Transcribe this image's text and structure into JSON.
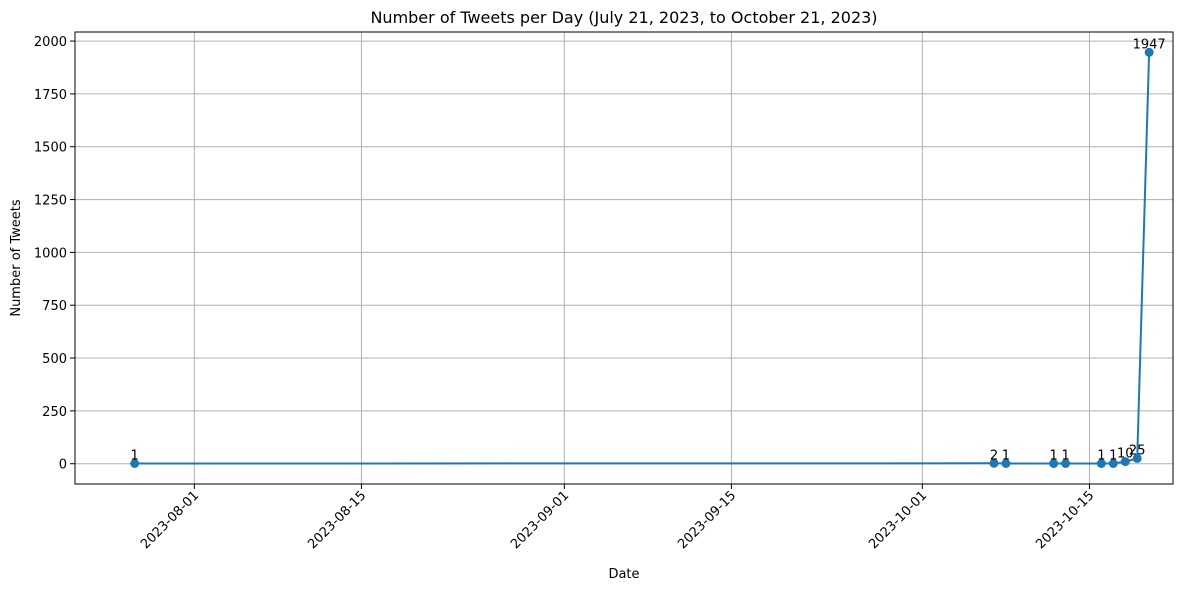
{
  "chart_data": {
    "type": "line",
    "title": "Number of Tweets per Day (July 21, 2023, to October 21, 2023)",
    "xlabel": "Date",
    "ylabel": "Number of Tweets",
    "x_ticks": [
      "2023-08-01",
      "2023-08-15",
      "2023-09-01",
      "2023-09-15",
      "2023-10-01",
      "2023-10-15"
    ],
    "y_ticks": [
      0,
      250,
      500,
      750,
      1000,
      1250,
      1500,
      1750,
      2000
    ],
    "xlim": [
      "2023-07-22",
      "2023-10-22"
    ],
    "ylim": [
      -96,
      2043
    ],
    "grid": true,
    "marker": "circle",
    "color": "#1f77b4",
    "series": [
      {
        "points": [
          {
            "x": "2023-07-27",
            "y": 1,
            "label": "1"
          },
          {
            "x": "2023-10-07",
            "y": 2,
            "label": "2"
          },
          {
            "x": "2023-10-08",
            "y": 1,
            "label": "1"
          },
          {
            "x": "2023-10-12",
            "y": 1,
            "label": "1"
          },
          {
            "x": "2023-10-13",
            "y": 1,
            "label": "1"
          },
          {
            "x": "2023-10-16",
            "y": 1,
            "label": "1"
          },
          {
            "x": "2023-10-17",
            "y": 1,
            "label": "1"
          },
          {
            "x": "2023-10-18",
            "y": 10,
            "label": "10"
          },
          {
            "x": "2023-10-19",
            "y": 25,
            "label": "25"
          },
          {
            "x": "2023-10-20",
            "y": 1947,
            "label": "1947"
          }
        ]
      }
    ]
  }
}
